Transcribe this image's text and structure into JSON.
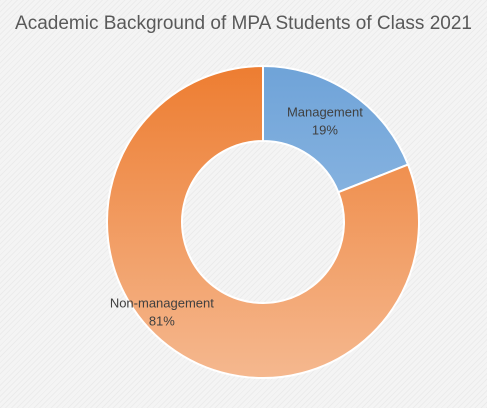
{
  "chart_data": {
    "type": "pie",
    "variant": "donut",
    "title": "Academic Background of MPA Students of Class 2021",
    "slices": [
      {
        "label": "Management",
        "percent_label": "19%",
        "value": 19,
        "color": "#6fa3d8",
        "color_light": "#a4c7ea"
      },
      {
        "label": "Non-management",
        "percent_label": "81%",
        "value": 81,
        "color": "#ed7d31",
        "color_light": "#f5b88f"
      }
    ],
    "legend": "none"
  }
}
